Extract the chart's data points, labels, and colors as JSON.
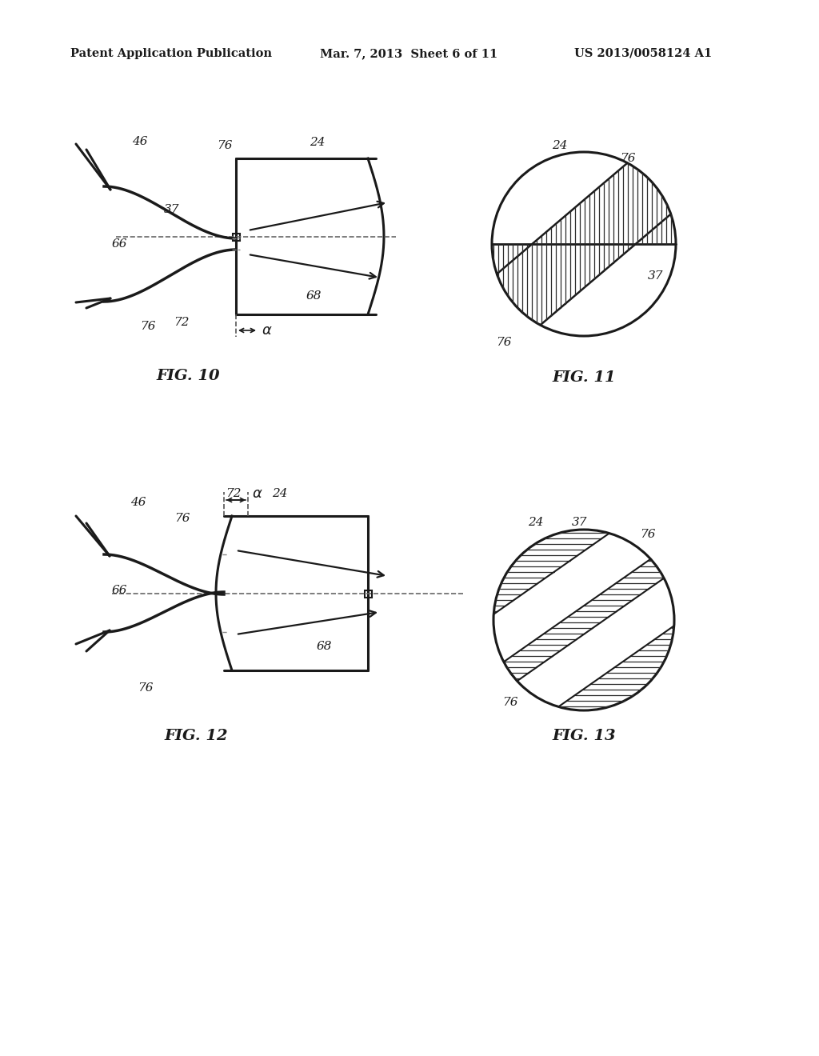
{
  "bg_color": "#ffffff",
  "line_color": "#1a1a1a",
  "header_text": "Patent Application Publication",
  "header_date": "Mar. 7, 2013  Sheet 6 of 11",
  "header_patent": "US 2013/0058124 A1",
  "fig10_label": "FIG. 10",
  "fig11_label": "FIG. 11",
  "fig12_label": "FIG. 12",
  "fig13_label": "FIG. 13"
}
